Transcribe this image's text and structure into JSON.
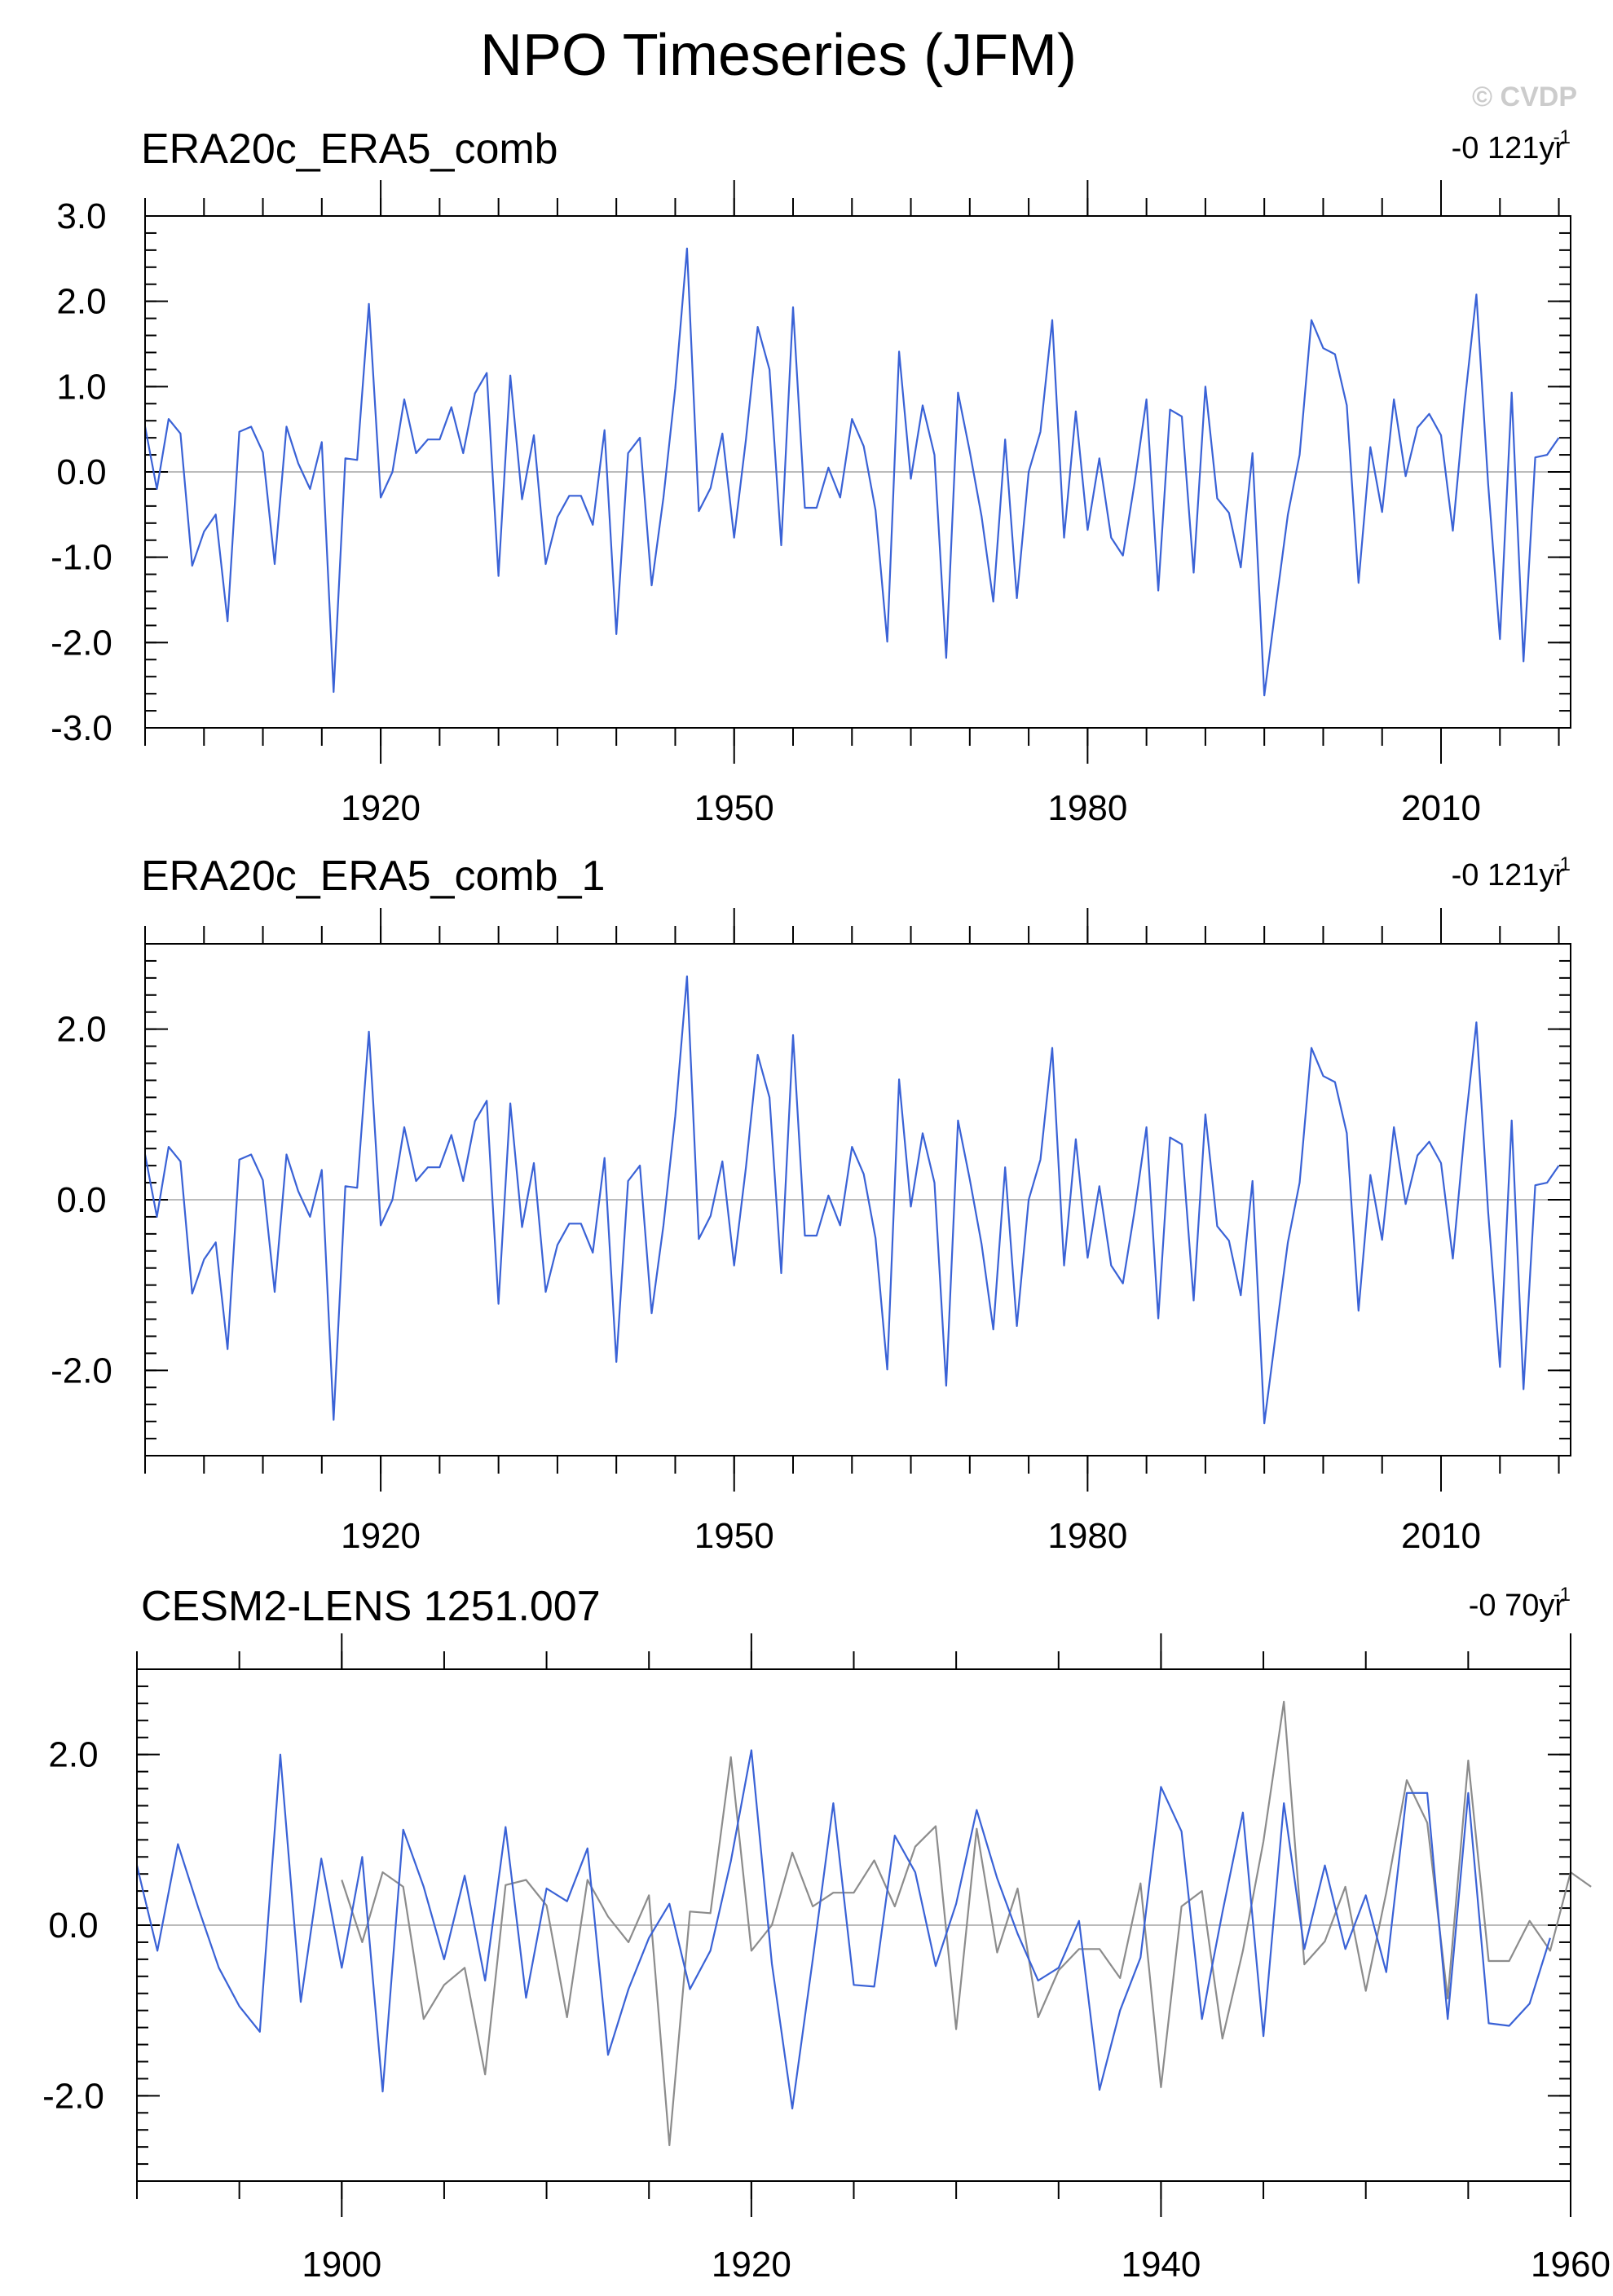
{
  "title": "NPO Timeseries (JFM)",
  "watermark": "© CVDP",
  "colors": {
    "obs": "#3a62d6",
    "model": "#8c8c8c",
    "zero": "#bbbbbb",
    "frame": "#000000"
  },
  "chart_data": [
    {
      "type": "line",
      "title": "ERA20c_ERA5_comb",
      "trend": {
        "value": "-0 121yr",
        "exp": "-1"
      },
      "xlim": [
        1900,
        2021
      ],
      "ylim": [
        -3,
        3
      ],
      "xticks": [
        1920,
        1950,
        1980,
        2010
      ],
      "yticks": [
        -3,
        -2,
        -1,
        0,
        1,
        2,
        3
      ],
      "ytick_labels": [
        "-3.0",
        "-2.0",
        "-1.0",
        "0.0",
        "1.0",
        "2.0",
        "3.0"
      ],
      "series": [
        {
          "role": "obs",
          "x_start": 1900,
          "values": [
            0.53,
            -0.2,
            0.62,
            0.45,
            -1.1,
            -0.7,
            -0.5,
            -1.75,
            0.47,
            0.53,
            0.23,
            -1.08,
            0.53,
            0.1,
            -0.2,
            0.35,
            -2.58,
            0.16,
            0.14,
            1.97,
            -0.3,
            0.0,
            0.85,
            0.22,
            0.38,
            0.38,
            0.76,
            0.22,
            0.92,
            1.16,
            -1.22,
            1.13,
            -0.32,
            0.43,
            -1.08,
            -0.53,
            -0.28,
            -0.28,
            -0.62,
            0.49,
            -1.9,
            0.22,
            0.4,
            -1.33,
            -0.3,
            0.98,
            2.62,
            -0.46,
            -0.19,
            0.45,
            -0.77,
            0.38,
            1.7,
            1.2,
            -0.86,
            1.93,
            -0.42,
            -0.42,
            0.05,
            -0.3,
            0.62,
            0.3,
            -0.45,
            -1.99,
            1.41,
            -0.08,
            0.78,
            0.2,
            -2.18,
            0.93,
            0.24,
            -0.52,
            -1.52,
            0.38,
            -1.48,
            0.0,
            0.47,
            1.78,
            -0.77,
            0.71,
            -0.68,
            0.16,
            -0.77,
            -0.98,
            -0.12,
            0.85,
            -1.39,
            0.73,
            0.65,
            -1.18,
            1.0,
            -0.31,
            -0.48,
            -1.12,
            0.22,
            -2.62,
            -1.55,
            -0.5,
            0.2,
            1.78,
            1.45,
            1.38,
            0.78,
            -1.3,
            0.29,
            -0.47,
            0.85,
            -0.05,
            0.52,
            0.68,
            0.43,
            -0.69,
            0.8,
            2.08,
            -0.14,
            -1.96,
            0.93,
            -2.22,
            0.17,
            0.2,
            0.4
          ]
        }
      ]
    },
    {
      "type": "line",
      "title": "ERA20c_ERA5_comb_1",
      "trend": {
        "value": "-0 121yr",
        "exp": "-1"
      },
      "xlim": [
        1900,
        2021
      ],
      "ylim": [
        -3,
        3
      ],
      "xticks": [
        1920,
        1950,
        1980,
        2010
      ],
      "yticks": [
        -2,
        0,
        2
      ],
      "ytick_labels": [
        "-2.0",
        "0.0",
        "2.0"
      ],
      "series": [
        {
          "role": "obs",
          "x_start": 1900,
          "values": [
            0.53,
            -0.2,
            0.62,
            0.45,
            -1.1,
            -0.7,
            -0.5,
            -1.75,
            0.47,
            0.53,
            0.23,
            -1.08,
            0.53,
            0.1,
            -0.2,
            0.35,
            -2.58,
            0.16,
            0.14,
            1.97,
            -0.3,
            0.0,
            0.85,
            0.22,
            0.38,
            0.38,
            0.76,
            0.22,
            0.92,
            1.16,
            -1.22,
            1.13,
            -0.32,
            0.43,
            -1.08,
            -0.53,
            -0.28,
            -0.28,
            -0.62,
            0.49,
            -1.9,
            0.22,
            0.4,
            -1.33,
            -0.3,
            0.98,
            2.62,
            -0.46,
            -0.19,
            0.45,
            -0.77,
            0.38,
            1.7,
            1.2,
            -0.86,
            1.93,
            -0.42,
            -0.42,
            0.05,
            -0.3,
            0.62,
            0.3,
            -0.45,
            -1.99,
            1.41,
            -0.08,
            0.78,
            0.2,
            -2.18,
            0.93,
            0.24,
            -0.52,
            -1.52,
            0.38,
            -1.48,
            0.0,
            0.47,
            1.78,
            -0.77,
            0.71,
            -0.68,
            0.16,
            -0.77,
            -0.98,
            -0.12,
            0.85,
            -1.39,
            0.73,
            0.65,
            -1.18,
            1.0,
            -0.31,
            -0.48,
            -1.12,
            0.22,
            -2.62,
            -1.55,
            -0.5,
            0.2,
            1.78,
            1.45,
            1.38,
            0.78,
            -1.3,
            0.29,
            -0.47,
            0.85,
            -0.05,
            0.52,
            0.68,
            0.43,
            -0.69,
            0.8,
            2.08,
            -0.14,
            -1.96,
            0.93,
            -2.22,
            0.17,
            0.2,
            0.4
          ]
        }
      ]
    },
    {
      "type": "line",
      "title": "CESM2-LENS 1251.007",
      "trend": {
        "value": "-0 70yr",
        "exp": "-1"
      },
      "xlim": [
        1890,
        1960
      ],
      "ylim": [
        -3,
        3
      ],
      "xticks": [
        1900,
        1920,
        1940,
        1960
      ],
      "yticks": [
        -2,
        0,
        2
      ],
      "ytick_labels": [
        "-2.0",
        "0.0",
        "2.0"
      ],
      "series": [
        {
          "role": "model",
          "x_start": 1900,
          "values": [
            0.53,
            -0.2,
            0.62,
            0.45,
            -1.1,
            -0.7,
            -0.5,
            -1.75,
            0.47,
            0.53,
            0.23,
            -1.08,
            0.53,
            0.1,
            -0.2,
            0.35,
            -2.58,
            0.16,
            0.14,
            1.97,
            -0.3,
            0.0,
            0.85,
            0.22,
            0.38,
            0.38,
            0.76,
            0.22,
            0.92,
            1.16,
            -1.22,
            1.13,
            -0.32,
            0.43,
            -1.08,
            -0.53,
            -0.28,
            -0.28,
            -0.62,
            0.49,
            -1.9,
            0.22,
            0.4,
            -1.33,
            -0.3,
            0.98,
            2.62,
            -0.46,
            -0.19,
            0.45,
            -0.77,
            0.38,
            1.7,
            1.2,
            -0.86,
            1.93,
            -0.42,
            -0.42,
            0.05,
            -0.3,
            0.62,
            0.45
          ]
        },
        {
          "role": "obs",
          "x_start": 1890,
          "values": [
            0.7,
            -0.3,
            0.95,
            0.2,
            -0.5,
            -0.95,
            -1.25,
            2.0,
            -0.9,
            0.78,
            -0.5,
            0.8,
            -1.95,
            1.12,
            0.45,
            -0.4,
            0.58,
            -0.65,
            1.15,
            -0.85,
            0.43,
            0.28,
            0.9,
            -1.52,
            -0.75,
            -0.15,
            0.25,
            -0.75,
            -0.3,
            0.75,
            2.05,
            -0.45,
            -2.15,
            -0.4,
            1.43,
            -0.7,
            -0.72,
            1.05,
            0.62,
            -0.48,
            0.25,
            1.35,
            0.55,
            -0.1,
            -0.65,
            -0.5,
            0.05,
            -1.93,
            -1.0,
            -0.38,
            1.62,
            1.1,
            -1.1,
            0.15,
            1.32,
            -1.3,
            1.43,
            -0.28,
            0.7,
            -0.28,
            0.35,
            -0.55,
            1.55,
            1.55,
            -1.1,
            1.55,
            -1.15,
            -1.18,
            -0.92,
            -0.15
          ]
        }
      ]
    }
  ]
}
